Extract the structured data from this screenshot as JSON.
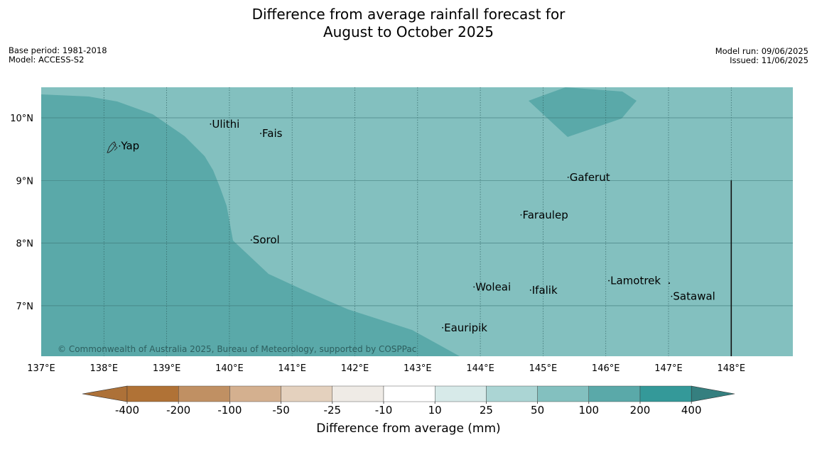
{
  "title_line1": "Difference from average rainfall forecast for",
  "title_line2": "August to October 2025",
  "meta_left": [
    "Base period: 1981-2018",
    "Model: ACCESS-S2"
  ],
  "meta_right": [
    "Model run: 09/06/2025",
    "Issued: 11/06/2025"
  ],
  "copyright": "© Commonwealth of Australia 2025, Bureau of Meteorology, supported by COSPPac",
  "lon_ticks": [
    "137°E",
    "138°E",
    "139°E",
    "140°E",
    "141°E",
    "142°E",
    "143°E",
    "144°E",
    "145°E",
    "146°E",
    "147°E",
    "148°E"
  ],
  "lat_ticks": [
    "10°N",
    "9°N",
    "8°N",
    "7°N"
  ],
  "places": [
    {
      "name": "Yap",
      "lon": 138.25,
      "lat": 9.55
    },
    {
      "name": "Ulithi",
      "lon": 139.7,
      "lat": 9.9
    },
    {
      "name": "Fais",
      "lon": 140.5,
      "lat": 9.75
    },
    {
      "name": "Gaferut",
      "lon": 145.4,
      "lat": 9.05
    },
    {
      "name": "Faraulep",
      "lon": 144.65,
      "lat": 8.45
    },
    {
      "name": "Sorol",
      "lon": 140.35,
      "lat": 8.05
    },
    {
      "name": "Lamotrek",
      "lon": 146.05,
      "lat": 7.4
    },
    {
      "name": "Woleai",
      "lon": 143.9,
      "lat": 7.3
    },
    {
      "name": "Ifalik",
      "lon": 144.8,
      "lat": 7.25
    },
    {
      "name": "Satawal",
      "lon": 147.05,
      "lat": 7.15
    },
    {
      "name": "Eauripik",
      "lon": 143.4,
      "lat": 6.65
    }
  ],
  "legend": {
    "title": "Difference from average (mm)",
    "ticks": [
      "-400",
      "-200",
      "-100",
      "-50",
      "-25",
      "-10",
      "10",
      "25",
      "50",
      "100",
      "200",
      "400"
    ],
    "colors": [
      "#ad7138",
      "#b07236",
      "#c09063",
      "#d4b08f",
      "#e4d1be",
      "#efebe6",
      "#ffffff",
      "#d7eae9",
      "#abd5d4",
      "#83c0bf",
      "#5aa9a9",
      "#349999",
      "#357f7f"
    ]
  }
}
